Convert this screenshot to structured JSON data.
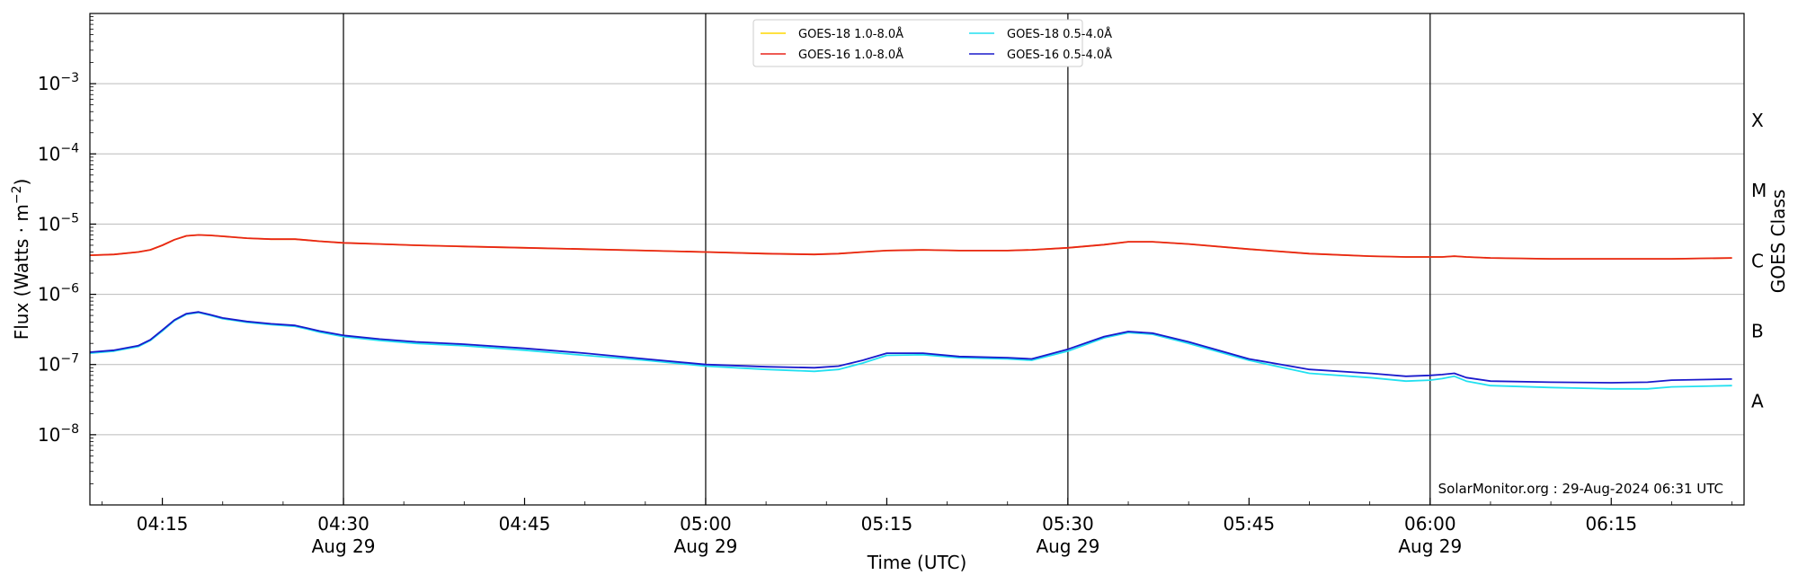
{
  "chart_data": {
    "type": "line",
    "xlabel": "Time (UTC)",
    "ylabel": "Flux (Watts · m",
    "ylabel_sup": "−2",
    "ylabel_close": ")",
    "right_label": "GOES Class",
    "y_scale": "log",
    "ylim": [
      1e-09,
      0.01
    ],
    "xlim": [
      "04:09",
      "06:26"
    ],
    "y_ticks": [
      {
        "value": 1e-08,
        "base": "10",
        "exp": "−8"
      },
      {
        "value": 1e-07,
        "base": "10",
        "exp": "−7"
      },
      {
        "value": 1e-06,
        "base": "10",
        "exp": "−6"
      },
      {
        "value": 1e-05,
        "base": "10",
        "exp": "−5"
      },
      {
        "value": 0.0001,
        "base": "10",
        "exp": "−4"
      },
      {
        "value": 0.001,
        "base": "10",
        "exp": "−3"
      }
    ],
    "x_ticks": [
      {
        "time": "04:15",
        "label": "04:15",
        "date": ""
      },
      {
        "time": "04:30",
        "label": "04:30",
        "date": "Aug 29"
      },
      {
        "time": "04:45",
        "label": "04:45",
        "date": ""
      },
      {
        "time": "05:00",
        "label": "05:00",
        "date": "Aug 29"
      },
      {
        "time": "05:15",
        "label": "05:15",
        "date": ""
      },
      {
        "time": "05:30",
        "label": "05:30",
        "date": "Aug 29"
      },
      {
        "time": "05:45",
        "label": "05:45",
        "date": ""
      },
      {
        "time": "06:00",
        "label": "06:00",
        "date": "Aug 29"
      },
      {
        "time": "06:15",
        "label": "06:15",
        "date": ""
      }
    ],
    "vertical_lines": [
      "04:30",
      "05:00",
      "05:30",
      "06:00"
    ],
    "goes_classes": [
      {
        "label": "X",
        "value": 0.0003
      },
      {
        "label": "M",
        "value": 3e-05
      },
      {
        "label": "C",
        "value": 3e-06
      },
      {
        "label": "B",
        "value": 3e-07
      },
      {
        "label": "A",
        "value": 3e-08
      }
    ],
    "legend": {
      "placement": "top-center",
      "entries": [
        {
          "name": "GOES-18 1.0-8.0Å",
          "color": "#ffd700"
        },
        {
          "name": "GOES-16 1.0-8.0Å",
          "color": "#e8251a"
        },
        {
          "name": "GOES-18 0.5-4.0Å",
          "color": "#22e0f0"
        },
        {
          "name": "GOES-16 0.5-4.0Å",
          "color": "#1a1acc"
        }
      ]
    },
    "credit": "SolarMonitor.org : 29-Aug-2024 06:31 UTC",
    "x": [
      "04:09",
      "04:11",
      "04:13",
      "04:14",
      "04:15",
      "04:16",
      "04:17",
      "04:18",
      "04:19",
      "04:20",
      "04:22",
      "04:24",
      "04:26",
      "04:27",
      "04:28",
      "04:30",
      "04:33",
      "04:36",
      "04:40",
      "04:45",
      "04:50",
      "04:55",
      "05:00",
      "05:05",
      "05:09",
      "05:11",
      "05:13",
      "05:15",
      "05:18",
      "05:21",
      "05:25",
      "05:27",
      "05:30",
      "05:33",
      "05:35",
      "05:37",
      "05:40",
      "05:45",
      "05:50",
      "05:55",
      "05:58",
      "06:00",
      "06:01",
      "06:02",
      "06:03",
      "06:05",
      "06:10",
      "06:15",
      "06:18",
      "06:20",
      "06:25"
    ],
    "series": [
      {
        "name": "GOES-18 1.0-8.0Å",
        "color": "#ffd700",
        "values": [
          3.6e-06,
          3.7e-06,
          4e-06,
          4.3e-06,
          5e-06,
          6e-06,
          6.8e-06,
          7e-06,
          6.9e-06,
          6.7e-06,
          6.3e-06,
          6.1e-06,
          6.1e-06,
          5.9e-06,
          5.7e-06,
          5.4e-06,
          5.2e-06,
          5e-06,
          4.8e-06,
          4.6e-06,
          4.4e-06,
          4.2e-06,
          4e-06,
          3.8e-06,
          3.7e-06,
          3.8e-06,
          4e-06,
          4.2e-06,
          4.3e-06,
          4.2e-06,
          4.2e-06,
          4.3e-06,
          4.6e-06,
          5.1e-06,
          5.6e-06,
          5.6e-06,
          5.2e-06,
          4.4e-06,
          3.8e-06,
          3.5e-06,
          3.4e-06,
          3.4e-06,
          3.4e-06,
          3.5e-06,
          3.4e-06,
          3.3e-06,
          3.2e-06,
          3.2e-06,
          3.2e-06,
          3.2e-06,
          3.3e-06
        ]
      },
      {
        "name": "GOES-16 1.0-8.0Å",
        "color": "#e8251a",
        "values": [
          3.6e-06,
          3.7e-06,
          4e-06,
          4.3e-06,
          5e-06,
          6e-06,
          6.8e-06,
          7e-06,
          6.9e-06,
          6.7e-06,
          6.3e-06,
          6.1e-06,
          6.1e-06,
          5.9e-06,
          5.7e-06,
          5.4e-06,
          5.2e-06,
          5e-06,
          4.8e-06,
          4.6e-06,
          4.4e-06,
          4.2e-06,
          4e-06,
          3.8e-06,
          3.7e-06,
          3.8e-06,
          4e-06,
          4.2e-06,
          4.3e-06,
          4.2e-06,
          4.2e-06,
          4.3e-06,
          4.6e-06,
          5.1e-06,
          5.6e-06,
          5.6e-06,
          5.2e-06,
          4.4e-06,
          3.8e-06,
          3.5e-06,
          3.4e-06,
          3.4e-06,
          3.4e-06,
          3.5e-06,
          3.4e-06,
          3.3e-06,
          3.2e-06,
          3.2e-06,
          3.2e-06,
          3.2e-06,
          3.3e-06
        ]
      },
      {
        "name": "GOES-18 0.5-4.0Å",
        "color": "#22e0f0",
        "values": [
          1.45e-07,
          1.55e-07,
          1.8e-07,
          2.2e-07,
          3e-07,
          4.2e-07,
          5.2e-07,
          5.5e-07,
          5e-07,
          4.5e-07,
          4e-07,
          3.7e-07,
          3.5e-07,
          3.2e-07,
          2.9e-07,
          2.5e-07,
          2.2e-07,
          2e-07,
          1.85e-07,
          1.6e-07,
          1.35e-07,
          1.15e-07,
          9.5e-08,
          8.5e-08,
          8e-08,
          8.5e-08,
          1.05e-07,
          1.35e-07,
          1.38e-07,
          1.25e-07,
          1.2e-07,
          1.15e-07,
          1.55e-07,
          2.4e-07,
          2.85e-07,
          2.7e-07,
          2e-07,
          1.15e-07,
          7.5e-08,
          6.5e-08,
          5.8e-08,
          6e-08,
          6.3e-08,
          6.8e-08,
          5.8e-08,
          5e-08,
          4.7e-08,
          4.5e-08,
          4.5e-08,
          4.8e-08,
          5e-08
        ]
      },
      {
        "name": "GOES-16 0.5-4.0Å",
        "color": "#1a1acc",
        "values": [
          1.5e-07,
          1.6e-07,
          1.85e-07,
          2.25e-07,
          3.1e-07,
          4.3e-07,
          5.3e-07,
          5.6e-07,
          5.1e-07,
          4.6e-07,
          4.1e-07,
          3.8e-07,
          3.6e-07,
          3.3e-07,
          3e-07,
          2.6e-07,
          2.3e-07,
          2.1e-07,
          1.95e-07,
          1.7e-07,
          1.45e-07,
          1.2e-07,
          1e-07,
          9.3e-08,
          9e-08,
          9.5e-08,
          1.15e-07,
          1.45e-07,
          1.45e-07,
          1.3e-07,
          1.25e-07,
          1.2e-07,
          1.65e-07,
          2.5e-07,
          2.95e-07,
          2.8e-07,
          2.1e-07,
          1.2e-07,
          8.5e-08,
          7.5e-08,
          6.8e-08,
          7e-08,
          7.2e-08,
          7.5e-08,
          6.5e-08,
          5.8e-08,
          5.6e-08,
          5.5e-08,
          5.6e-08,
          6e-08,
          6.2e-08
        ]
      }
    ]
  }
}
